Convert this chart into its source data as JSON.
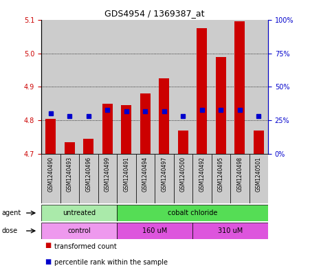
{
  "title": "GDS4954 / 1369387_at",
  "samples": [
    "GSM1240490",
    "GSM1240493",
    "GSM1240496",
    "GSM1240499",
    "GSM1240491",
    "GSM1240494",
    "GSM1240497",
    "GSM1240500",
    "GSM1240492",
    "GSM1240495",
    "GSM1240498",
    "GSM1240501"
  ],
  "transformed_counts": [
    4.805,
    4.735,
    4.745,
    4.85,
    4.845,
    4.88,
    4.925,
    4.77,
    5.075,
    4.99,
    5.095,
    4.77
  ],
  "percentile_ranks": [
    30,
    28,
    28,
    33,
    32,
    32,
    32,
    28,
    33,
    33,
    33,
    28
  ],
  "ylim_left": [
    4.7,
    5.1
  ],
  "ylim_right": [
    0,
    100
  ],
  "yticks_left": [
    4.7,
    4.8,
    4.9,
    5.0,
    5.1
  ],
  "yticks_right": [
    0,
    25,
    50,
    75,
    100
  ],
  "ytick_labels_right": [
    "0%",
    "25%",
    "50%",
    "75%",
    "100%"
  ],
  "bar_color": "#cc0000",
  "dot_color": "#0000cc",
  "bar_bottom": 4.7,
  "agent_labels": [
    {
      "label": "untreated",
      "start": 0,
      "end": 4,
      "color": "#aaeaaa"
    },
    {
      "label": "cobalt chloride",
      "start": 4,
      "end": 12,
      "color": "#55dd55"
    }
  ],
  "dose_labels": [
    {
      "label": "control",
      "start": 0,
      "end": 4,
      "color": "#ee99ee"
    },
    {
      "label": "160 uM",
      "start": 4,
      "end": 8,
      "color": "#dd55dd"
    },
    {
      "label": "310 uM",
      "start": 8,
      "end": 12,
      "color": "#dd55dd"
    }
  ],
  "legend_items": [
    {
      "label": "transformed count",
      "color": "#cc0000"
    },
    {
      "label": "percentile rank within the sample",
      "color": "#0000cc"
    }
  ],
  "background_color": "#ffffff",
  "plot_bg_color": "#ffffff",
  "sample_bg_color": "#cccccc",
  "grid_dotted_color": "#000000"
}
